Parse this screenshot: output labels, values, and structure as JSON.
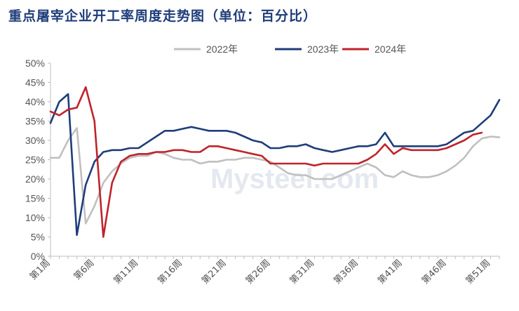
{
  "chart_data": {
    "type": "line",
    "title": "重点屠宰企业开工率周度走势图（单位：百分比）",
    "xlabel": "",
    "ylabel": "",
    "ylim": [
      0,
      50
    ],
    "y_ticks": [
      "0%",
      "5%",
      "10%",
      "15%",
      "20%",
      "25%",
      "30%",
      "35%",
      "40%",
      "45%",
      "50%"
    ],
    "x_ticks": [
      "第1周",
      "第6周",
      "第11周",
      "第16周",
      "第21周",
      "第26周",
      "第31周",
      "第36周",
      "第41周",
      "第46周",
      "第51周"
    ],
    "x_tick_weeks": [
      1,
      6,
      11,
      16,
      21,
      26,
      31,
      36,
      41,
      46,
      51
    ],
    "grid": false,
    "legend_position": "top",
    "watermark": "Mysteel.com",
    "series": [
      {
        "name": "2022年",
        "color": "#c0c0c0",
        "x": [
          1,
          2,
          3,
          4,
          5,
          6,
          7,
          8,
          9,
          10,
          11,
          12,
          13,
          14,
          15,
          16,
          17,
          18,
          19,
          20,
          21,
          22,
          23,
          24,
          25,
          26,
          27,
          28,
          29,
          30,
          31,
          32,
          33,
          34,
          35,
          36,
          37,
          38,
          39,
          40,
          41,
          42,
          43,
          44,
          45,
          46,
          47,
          48,
          49,
          50,
          51,
          52
        ],
        "values": [
          25.5,
          25.5,
          30,
          33.2,
          8.5,
          13,
          19,
          22,
          24,
          25.5,
          26,
          26,
          27,
          26.5,
          25.5,
          25,
          25,
          24,
          24.5,
          24.5,
          25,
          25,
          25.5,
          25.5,
          25,
          24.5,
          23,
          21.5,
          21,
          21,
          20,
          20,
          20,
          21,
          22,
          23,
          24,
          23,
          21,
          20.5,
          22,
          21,
          20.5,
          20.5,
          21,
          22,
          23.5,
          25.5,
          28.5,
          30.5,
          31,
          30.8
        ]
      },
      {
        "name": "2023年",
        "color": "#1f3d7a",
        "x": [
          1,
          2,
          3,
          4,
          5,
          6,
          7,
          8,
          9,
          10,
          11,
          12,
          13,
          14,
          15,
          16,
          17,
          18,
          19,
          20,
          21,
          22,
          23,
          24,
          25,
          26,
          27,
          28,
          29,
          30,
          31,
          32,
          33,
          34,
          35,
          36,
          37,
          38,
          39,
          40,
          41,
          42,
          43,
          44,
          45,
          46,
          47,
          48,
          49,
          50,
          51,
          52
        ],
        "values": [
          34.5,
          40,
          42,
          5.5,
          18.5,
          24.5,
          27,
          27.5,
          27.5,
          28,
          28,
          29.5,
          31,
          32.5,
          32.5,
          33,
          33.5,
          33,
          32.5,
          32.5,
          32.5,
          32,
          31,
          30,
          29.5,
          28,
          28,
          28.5,
          28.5,
          29,
          28,
          27.5,
          27,
          27.5,
          28,
          28.5,
          28.5,
          29,
          32,
          28.5,
          28.5,
          28.5,
          28.5,
          28.5,
          28.5,
          29,
          30.5,
          32,
          32.5,
          34.5,
          36.5,
          40.5
        ]
      },
      {
        "name": "2024年",
        "color": "#c0232b",
        "x": [
          1,
          2,
          3,
          4,
          5,
          6,
          7,
          8,
          9,
          10,
          11,
          12,
          13,
          14,
          15,
          16,
          17,
          18,
          19,
          20,
          21,
          22,
          23,
          24,
          25,
          26,
          27,
          28,
          29,
          30,
          31,
          32,
          33,
          34,
          35,
          36,
          37,
          38,
          39,
          40,
          41,
          42,
          43,
          44,
          45,
          46,
          47,
          48,
          49,
          50
        ],
        "values": [
          37.5,
          36.5,
          38,
          38.5,
          43.8,
          35,
          5,
          19,
          24.5,
          26,
          26.5,
          26.5,
          27,
          27,
          27.5,
          27.5,
          27,
          27,
          28.5,
          28.5,
          28,
          27.5,
          27,
          26.5,
          26,
          24,
          24,
          24,
          24,
          24,
          23.5,
          24,
          24,
          24,
          24,
          24,
          25,
          26.5,
          29,
          26.5,
          28,
          27.5,
          27.5,
          27.5,
          27.5,
          28,
          29,
          30,
          31.5,
          32
        ]
      }
    ]
  }
}
